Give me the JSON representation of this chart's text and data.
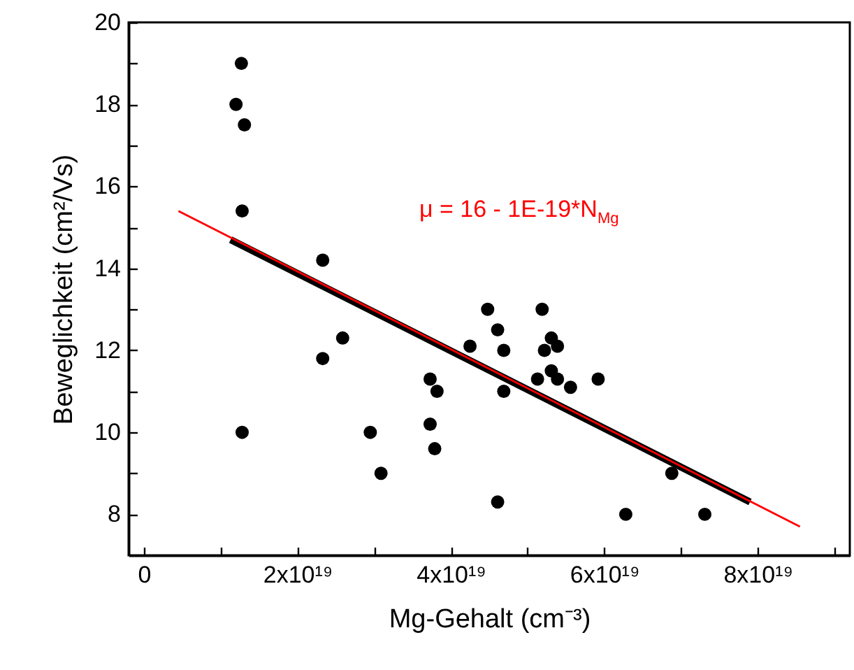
{
  "chart_data": {
    "type": "scatter",
    "xlabel": "Mg-Gehalt (cm⁻³)",
    "ylabel": "Beweglichkeit (cm²/Vs)",
    "annotations": [
      "μ = 16 - 1E-19*N$_{Mg}$"
    ],
    "xlim": [
      -2e+18,
      9.2e+19
    ],
    "ylim": [
      7,
      20
    ],
    "xticks": [
      0,
      {
        "value": 1e+19,
        "label": null
      },
      {
        "value": 2e+19,
        "label": "2x10¹⁹"
      },
      {
        "value": 3e+19,
        "label": null
      },
      {
        "value": 4e+19,
        "label": "4x10¹⁹"
      },
      {
        "value": 5e+19,
        "label": null
      },
      {
        "value": 6e+19,
        "label": "6x10¹⁹"
      },
      {
        "value": 7e+19,
        "label": null
      },
      {
        "value": 8e+19,
        "label": "8x10¹⁹"
      },
      {
        "value": 9e+19,
        "label": null
      }
    ],
    "yticks": [
      8,
      {
        "value": 9,
        "label": null
      },
      10,
      {
        "value": 11,
        "label": null
      },
      12,
      {
        "value": 13,
        "label": null
      },
      14,
      {
        "value": 15,
        "label": null
      },
      16,
      {
        "value": 17,
        "label": null
      },
      18,
      {
        "value": 19,
        "label": null
      },
      20
    ],
    "grid": false,
    "series": [
      {
        "marker": "circle",
        "color": "#000000",
        "x": [
          1.27e+19,
          1.2e+19,
          1.31e+19,
          1.28e+19,
          1.28e+19,
          2.33e+19,
          2.33e+19,
          2.59e+19,
          2.95e+19,
          3.09e+19,
          3.73e+19,
          3.82e+19,
          3.73e+19,
          3.79e+19,
          4.25e+19,
          4.48e+19,
          4.61e+19,
          4.69e+19,
          4.69e+19,
          4.61e+19,
          5.19e+19,
          5.31e+19,
          5.22e+19,
          5.39e+19,
          5.13e+19,
          5.31e+19,
          5.39e+19,
          5.56e+19,
          5.92e+19,
          6.28e+19,
          6.88e+19,
          7.31e+19
        ],
        "values": [
          19.0,
          18.0,
          17.5,
          15.4,
          10.0,
          14.2,
          11.8,
          12.3,
          10.0,
          9.0,
          11.3,
          11.0,
          10.2,
          9.6,
          12.1,
          13.0,
          12.5,
          12.0,
          11.0,
          8.3,
          13.0,
          12.3,
          12.0,
          12.1,
          11.3,
          11.5,
          11.3,
          11.1,
          11.3,
          8.0,
          9.0,
          8.0
        ]
      },
      {
        "type": "line",
        "marker": "none",
        "color": "#000000",
        "x": [
          1.13e+19,
          7.9e+19
        ],
        "values": [
          14.7,
          8.3
        ]
      },
      {
        "type": "line",
        "marker": "none",
        "color": "#ff0000",
        "x": [
          4.5e+18,
          8.55e+19
        ],
        "values": [
          15.4,
          7.7
        ]
      }
    ]
  }
}
